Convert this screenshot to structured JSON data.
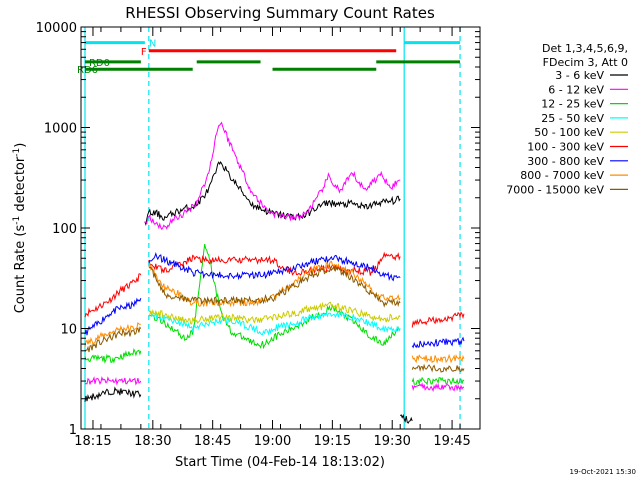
{
  "chart_data": {
    "type": "line",
    "title": "RHESSI Observing Summary Count Rates",
    "xlabel": "Start Time (04-Feb-14 18:13:02)",
    "ylabel_parts": [
      "Count Rate (s",
      "-1",
      " detector",
      "-1",
      ")"
    ],
    "ylog": true,
    "ylim": [
      1,
      10000
    ],
    "xlim": [
      "18:12",
      "19:52"
    ],
    "y_ticks": [
      {
        "v": 1,
        "label": "1"
      },
      {
        "v": 10,
        "label": "10"
      },
      {
        "v": 100,
        "label": "100"
      },
      {
        "v": 1000,
        "label": "1000"
      },
      {
        "v": 10000,
        "label": "10000"
      }
    ],
    "x_ticks": [
      {
        "t": "18:15",
        "label": "18:15"
      },
      {
        "t": "18:30",
        "label": "18:30"
      },
      {
        "t": "18:45",
        "label": "18:45"
      },
      {
        "t": "19:00",
        "label": "19:00"
      },
      {
        "t": "19:15",
        "label": "19:15"
      },
      {
        "t": "19:30",
        "label": "19:30"
      },
      {
        "t": "19:45",
        "label": "19:45"
      }
    ],
    "legend": {
      "placement": "right",
      "header": [
        "Det 1,3,4,5,6,9,",
        "FDecim 3, Att 0"
      ]
    },
    "series": [
      {
        "name": "3 - 6 keV",
        "color": "#000000",
        "points": [
          [
            "18:28",
            110
          ],
          [
            "18:29",
            140
          ],
          [
            "18:31",
            140
          ],
          [
            "18:33",
            125
          ],
          [
            "18:35",
            140
          ],
          [
            "18:38",
            155
          ],
          [
            "18:41",
            170
          ],
          [
            "18:44",
            240
          ],
          [
            "18:46",
            380
          ],
          [
            "18:47",
            470
          ],
          [
            "18:49",
            340
          ],
          [
            "18:52",
            240
          ],
          [
            "18:55",
            170
          ],
          [
            "18:58",
            150
          ],
          [
            "19:00",
            140
          ],
          [
            "19:05",
            130
          ],
          [
            "19:08",
            132
          ],
          [
            "19:11",
            160
          ],
          [
            "19:14",
            180
          ],
          [
            "19:17",
            170
          ],
          [
            "19:20",
            175
          ],
          [
            "19:23",
            160
          ],
          [
            "19:27",
            180
          ],
          [
            "19:30",
            185
          ],
          [
            "19:32",
            195
          ]
        ]
      },
      {
        "name": "6 - 12 keV",
        "color": "#ff00ff",
        "points": [
          [
            "18:28",
            110
          ],
          [
            "18:29",
            130
          ],
          [
            "18:31",
            110
          ],
          [
            "18:33",
            100
          ],
          [
            "18:35",
            120
          ],
          [
            "18:38",
            140
          ],
          [
            "18:41",
            180
          ],
          [
            "18:44",
            350
          ],
          [
            "18:46",
            900
          ],
          [
            "18:47",
            1150
          ],
          [
            "18:49",
            750
          ],
          [
            "18:52",
            400
          ],
          [
            "18:55",
            220
          ],
          [
            "18:58",
            160
          ],
          [
            "19:00",
            140
          ],
          [
            "19:05",
            125
          ],
          [
            "19:08",
            135
          ],
          [
            "19:11",
            190
          ],
          [
            "19:14",
            320
          ],
          [
            "19:17",
            230
          ],
          [
            "19:20",
            350
          ],
          [
            "19:23",
            240
          ],
          [
            "19:27",
            340
          ],
          [
            "19:30",
            260
          ],
          [
            "19:32",
            300
          ]
        ]
      },
      {
        "name": "12 - 25 keV",
        "color": "#00dd00",
        "points": [
          [
            "18:29",
            14
          ],
          [
            "18:32",
            12
          ],
          [
            "18:35",
            10
          ],
          [
            "18:38",
            8
          ],
          [
            "18:40",
            9
          ],
          [
            "18:42",
            32
          ],
          [
            "18:43",
            70
          ],
          [
            "18:44",
            55
          ],
          [
            "18:46",
            22
          ],
          [
            "18:48",
            12
          ],
          [
            "18:50",
            9
          ],
          [
            "18:53",
            8
          ],
          [
            "18:56",
            7
          ],
          [
            "18:58",
            7
          ],
          [
            "19:00",
            8
          ],
          [
            "19:05",
            10
          ],
          [
            "19:10",
            13
          ],
          [
            "19:15",
            16
          ],
          [
            "19:20",
            12
          ],
          [
            "19:25",
            8
          ],
          [
            "19:28",
            7
          ],
          [
            "19:30",
            9
          ],
          [
            "19:32",
            10
          ]
        ]
      },
      {
        "name": "25 - 50 keV",
        "color": "#00ffff",
        "points": [
          [
            "18:29",
            14
          ],
          [
            "18:32",
            13
          ],
          [
            "18:35",
            12
          ],
          [
            "18:38",
            11
          ],
          [
            "18:40",
            10
          ],
          [
            "18:43",
            11
          ],
          [
            "18:47",
            12
          ],
          [
            "18:50",
            12
          ],
          [
            "18:55",
            10
          ],
          [
            "18:58",
            9
          ],
          [
            "19:00",
            10
          ],
          [
            "19:05",
            11
          ],
          [
            "19:10",
            13
          ],
          [
            "19:15",
            14
          ],
          [
            "19:20",
            13
          ],
          [
            "19:25",
            11
          ],
          [
            "19:28",
            10
          ],
          [
            "19:30",
            10
          ],
          [
            "19:32",
            10
          ]
        ]
      },
      {
        "name": "50 - 100 keV",
        "color": "#cccc00",
        "points": [
          [
            "18:29",
            14
          ],
          [
            "18:32",
            14
          ],
          [
            "18:35",
            13
          ],
          [
            "18:38",
            12
          ],
          [
            "18:40",
            12
          ],
          [
            "18:45",
            13
          ],
          [
            "18:50",
            13
          ],
          [
            "18:55",
            12
          ],
          [
            "19:00",
            13
          ],
          [
            "19:05",
            14
          ],
          [
            "19:10",
            16
          ],
          [
            "19:15",
            17
          ],
          [
            "19:20",
            15
          ],
          [
            "19:25",
            13
          ],
          [
            "19:28",
            12
          ],
          [
            "19:30",
            13
          ],
          [
            "19:32",
            13
          ]
        ]
      },
      {
        "name": "100 - 300 keV",
        "color": "#ff0000",
        "points": [
          [
            "18:29",
            48
          ],
          [
            "18:31",
            40
          ],
          [
            "18:33",
            38
          ],
          [
            "18:35",
            40
          ],
          [
            "18:38",
            46
          ],
          [
            "18:40",
            50
          ],
          [
            "18:45",
            47
          ],
          [
            "18:50",
            48
          ],
          [
            "18:55",
            48
          ],
          [
            "19:00",
            48
          ],
          [
            "19:05",
            36
          ],
          [
            "19:10",
            38
          ],
          [
            "19:15",
            40
          ],
          [
            "19:20",
            38
          ],
          [
            "19:25",
            36
          ],
          [
            "19:28",
            52
          ],
          [
            "19:30",
            52
          ],
          [
            "19:32",
            52
          ]
        ]
      },
      {
        "name": "300 - 800 keV",
        "color": "#0000ff",
        "points": [
          [
            "18:29",
            48
          ],
          [
            "18:31",
            52
          ],
          [
            "18:33",
            48
          ],
          [
            "18:35",
            44
          ],
          [
            "18:38",
            40
          ],
          [
            "18:40",
            36
          ],
          [
            "18:45",
            34
          ],
          [
            "18:50",
            34
          ],
          [
            "18:55",
            34
          ],
          [
            "19:00",
            35
          ],
          [
            "19:05",
            40
          ],
          [
            "19:10",
            46
          ],
          [
            "19:15",
            50
          ],
          [
            "19:20",
            46
          ],
          [
            "19:25",
            40
          ],
          [
            "19:28",
            34
          ],
          [
            "19:30",
            32
          ],
          [
            "19:32",
            32
          ]
        ]
      },
      {
        "name": "800 - 7000 keV",
        "color": "#ff8c00",
        "points": [
          [
            "18:29",
            44
          ],
          [
            "18:31",
            32
          ],
          [
            "18:33",
            26
          ],
          [
            "18:35",
            24
          ],
          [
            "18:38",
            20
          ],
          [
            "18:40",
            18
          ],
          [
            "18:45",
            18
          ],
          [
            "18:50",
            18
          ],
          [
            "18:55",
            18
          ],
          [
            "19:00",
            20
          ],
          [
            "19:05",
            28
          ],
          [
            "19:10",
            38
          ],
          [
            "19:15",
            44
          ],
          [
            "19:20",
            36
          ],
          [
            "19:25",
            24
          ],
          [
            "19:28",
            20
          ],
          [
            "19:30",
            20
          ],
          [
            "19:32",
            20
          ]
        ]
      },
      {
        "name": "7000 - 15000 keV",
        "color": "#8b5a00",
        "points": [
          [
            "18:29",
            44
          ],
          [
            "18:31",
            30
          ],
          [
            "18:33",
            22
          ],
          [
            "18:35",
            21
          ],
          [
            "18:38",
            20
          ],
          [
            "18:40",
            19
          ],
          [
            "18:45",
            19
          ],
          [
            "18:50",
            19
          ],
          [
            "18:55",
            19
          ],
          [
            "19:00",
            20
          ],
          [
            "19:05",
            26
          ],
          [
            "19:10",
            34
          ],
          [
            "19:15",
            40
          ],
          [
            "19:20",
            32
          ],
          [
            "19:25",
            22
          ],
          [
            "19:28",
            18
          ],
          [
            "19:30",
            18
          ],
          [
            "19:32",
            18
          ]
        ]
      }
    ],
    "pre_flare_segments": [
      {
        "name": "100 - 300 keV",
        "color": "#ff0000",
        "points": [
          [
            "18:13",
            14
          ],
          [
            "18:16",
            16
          ],
          [
            "18:19",
            19
          ],
          [
            "18:22",
            24
          ],
          [
            "18:25",
            28
          ],
          [
            "18:27",
            34
          ]
        ]
      },
      {
        "name": "300 - 800 keV",
        "color": "#0000ff",
        "points": [
          [
            "18:13",
            9
          ],
          [
            "18:16",
            11
          ],
          [
            "18:19",
            14
          ],
          [
            "18:22",
            16
          ],
          [
            "18:25",
            17
          ],
          [
            "18:27",
            20
          ]
        ]
      },
      {
        "name": "800 - 7000 keV",
        "color": "#ff8c00",
        "points": [
          [
            "18:13",
            7
          ],
          [
            "18:16",
            8
          ],
          [
            "18:19",
            9
          ],
          [
            "18:22",
            10
          ],
          [
            "18:25",
            10
          ],
          [
            "18:27",
            11
          ]
        ]
      },
      {
        "name": "7000 - 15000 keV",
        "color": "#8b5a00",
        "points": [
          [
            "18:13",
            6
          ],
          [
            "18:16",
            7
          ],
          [
            "18:19",
            8
          ],
          [
            "18:22",
            9
          ],
          [
            "18:25",
            9
          ],
          [
            "18:27",
            10
          ]
        ]
      },
      {
        "name": "12 - 25 keV",
        "color": "#00dd00",
        "points": [
          [
            "18:13",
            5
          ],
          [
            "18:20",
            5
          ],
          [
            "18:27",
            6
          ]
        ]
      },
      {
        "name": "6 - 12 keV",
        "color": "#ff00ff",
        "points": [
          [
            "18:13",
            3
          ],
          [
            "18:20",
            3
          ],
          [
            "18:27",
            3
          ]
        ]
      },
      {
        "name": "3 - 6 keV",
        "color": "#000000",
        "points": [
          [
            "18:13",
            2
          ],
          [
            "18:20",
            2.4
          ],
          [
            "18:27",
            2.2
          ]
        ]
      }
    ],
    "post_flare_segments": [
      {
        "name": "100 - 300 keV",
        "color": "#ff0000",
        "points": [
          [
            "19:35",
            11
          ],
          [
            "19:40",
            12
          ],
          [
            "19:45",
            13
          ],
          [
            "19:48",
            14
          ]
        ]
      },
      {
        "name": "300 - 800 keV",
        "color": "#0000ff",
        "points": [
          [
            "19:35",
            7
          ],
          [
            "19:48",
            7.5
          ]
        ]
      },
      {
        "name": "800 - 7000 keV",
        "color": "#ff8c00",
        "points": [
          [
            "19:35",
            5
          ],
          [
            "19:48",
            5
          ]
        ]
      },
      {
        "name": "7000 - 15000 keV",
        "color": "#8b5a00",
        "points": [
          [
            "19:35",
            4
          ],
          [
            "19:48",
            4
          ]
        ]
      },
      {
        "name": "12 - 25 keV",
        "color": "#00dd00",
        "points": [
          [
            "19:35",
            3
          ],
          [
            "19:48",
            3
          ]
        ]
      },
      {
        "name": "6 - 12 keV",
        "color": "#ff00ff",
        "points": [
          [
            "19:35",
            2.6
          ],
          [
            "19:48",
            2.6
          ]
        ]
      },
      {
        "name": "3 - 6 keV",
        "color": "#000000",
        "points": [
          [
            "19:32",
            1.3
          ],
          [
            "19:35",
            1.2
          ]
        ]
      }
    ],
    "flag_bars": [
      {
        "label": "N",
        "color": "#00e5ee",
        "y": 7000,
        "segments": [
          [
            "18:13",
            "18:28"
          ],
          [
            "19:33",
            "19:47"
          ]
        ],
        "label_at": "18:29"
      },
      {
        "label": "F",
        "color": "#ff0000",
        "y": 5800,
        "segments": [
          [
            "18:29",
            "19:31"
          ]
        ],
        "label_at": "18:27"
      },
      {
        "label": "RD0",
        "color": "#008000",
        "y": 4500,
        "segments": [
          [
            "18:13",
            "18:27"
          ],
          [
            "18:41",
            "18:57"
          ],
          [
            "19:26",
            "19:47"
          ]
        ],
        "label_at": "18:14"
      },
      {
        "label": "RD6",
        "color": "#008000",
        "y": 3800,
        "segments": [
          [
            "18:13",
            "18:40"
          ],
          [
            "19:00",
            "19:26"
          ]
        ],
        "label_at": "18:11"
      }
    ],
    "vertical_markers": [
      {
        "t": "18:13",
        "color": "#00e5ee",
        "style": "solid"
      },
      {
        "t": "18:29",
        "color": "#00e5ee",
        "style": "dashed"
      },
      {
        "t": "19:33",
        "color": "#00e5ee",
        "style": "solid"
      },
      {
        "t": "19:47",
        "color": "#00e5ee",
        "style": "dashed"
      }
    ],
    "footer_date": "19-Oct-2021 15:30"
  }
}
